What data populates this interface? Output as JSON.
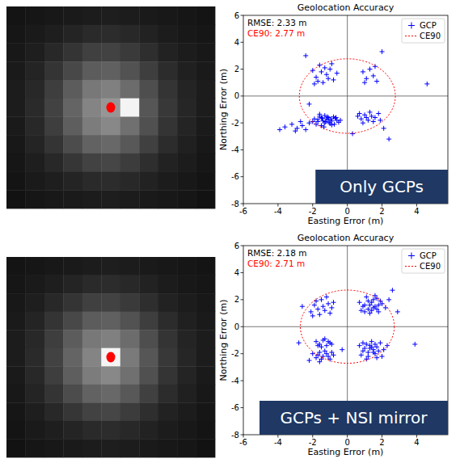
{
  "images": [
    {
      "pixels": [
        [
          20,
          22,
          24,
          26,
          28,
          30,
          28,
          26,
          24,
          22,
          20
        ],
        [
          22,
          26,
          30,
          36,
          42,
          44,
          40,
          34,
          28,
          24,
          22
        ],
        [
          24,
          30,
          40,
          52,
          64,
          66,
          58,
          46,
          34,
          28,
          24
        ],
        [
          26,
          36,
          52,
          72,
          92,
          96,
          82,
          62,
          44,
          32,
          26
        ],
        [
          28,
          40,
          62,
          92,
          120,
          128,
          108,
          78,
          52,
          36,
          28
        ],
        [
          28,
          42,
          66,
          100,
          132,
          150,
          122,
          86,
          56,
          38,
          28
        ],
        [
          26,
          40,
          62,
          94,
          124,
          136,
          112,
          80,
          52,
          36,
          26
        ],
        [
          24,
          36,
          52,
          76,
          98,
          104,
          88,
          64,
          44,
          32,
          24
        ],
        [
          22,
          30,
          40,
          54,
          66,
          70,
          60,
          46,
          34,
          28,
          22
        ],
        [
          20,
          26,
          30,
          36,
          42,
          44,
          40,
          34,
          28,
          24,
          20
        ],
        [
          18,
          22,
          24,
          26,
          28,
          30,
          28,
          26,
          24,
          22,
          18
        ]
      ],
      "highlight": [
        5,
        6
      ],
      "marker": [
        5,
        5
      ]
    },
    {
      "pixels": [
        [
          20,
          22,
          24,
          26,
          28,
          30,
          28,
          26,
          24,
          22,
          20
        ],
        [
          22,
          26,
          30,
          36,
          42,
          44,
          40,
          34,
          28,
          24,
          22
        ],
        [
          24,
          30,
          40,
          52,
          64,
          66,
          58,
          46,
          34,
          28,
          24
        ],
        [
          26,
          36,
          52,
          72,
          92,
          96,
          82,
          62,
          44,
          32,
          26
        ],
        [
          28,
          40,
          62,
          92,
          120,
          128,
          108,
          78,
          52,
          36,
          28
        ],
        [
          28,
          42,
          66,
          100,
          132,
          150,
          122,
          86,
          56,
          38,
          28
        ],
        [
          26,
          40,
          62,
          94,
          124,
          136,
          112,
          80,
          52,
          36,
          26
        ],
        [
          24,
          36,
          52,
          76,
          98,
          104,
          88,
          64,
          44,
          32,
          24
        ],
        [
          22,
          30,
          40,
          54,
          66,
          70,
          60,
          46,
          34,
          28,
          22
        ],
        [
          20,
          26,
          30,
          36,
          42,
          44,
          40,
          34,
          28,
          24,
          20
        ],
        [
          18,
          22,
          24,
          26,
          28,
          30,
          28,
          26,
          24,
          22,
          18
        ]
      ],
      "highlight": [
        5,
        5
      ],
      "marker": [
        5,
        5
      ]
    }
  ],
  "chart_data": [
    {
      "type": "scatter",
      "title": "Geolocation Accuracy",
      "x_label": "Easting Error (m)",
      "y_label": "Northing Error (m)",
      "xlim": [
        -6,
        5.8
      ],
      "ylim": [
        -8,
        6
      ],
      "xticks": [
        -6,
        -4,
        -2,
        0,
        2,
        4
      ],
      "yticks": [
        -8,
        -6,
        -4,
        -2,
        0,
        2,
        4,
        6
      ],
      "grid": false,
      "legend": "upper right",
      "annotations": [
        "RMSE: 2.33 m"
      ],
      "ce90": {
        "name": "CE90",
        "label": "CE90: 2.77 m",
        "radius": 2.77,
        "color": "#ff0000",
        "line_style": "dotted"
      },
      "caption": "Only GCPs",
      "series": [
        {
          "name": "GCP",
          "color": "#0000ff",
          "marker": "plus",
          "x": [
            -1.9,
            -1.7,
            -1.5,
            -1.3,
            -1.1,
            -0.9,
            -0.7,
            -0.5,
            -1.8,
            -1.6,
            -1.4,
            -1.2,
            -1.0,
            -0.8,
            -0.6,
            -2.0,
            -1.5,
            -1.3,
            -1.1,
            -0.9,
            -1.7,
            -1.25,
            -0.95,
            -0.65,
            -1.45,
            -1.05,
            -2.2,
            -0.4,
            -1.6,
            -0.75,
            -1.35,
            -1.15,
            0.6,
            0.8,
            1.0,
            1.2,
            1.4,
            1.6,
            1.8,
            0.9,
            1.3,
            1.5,
            1.1,
            0.7,
            1.9,
            2.1,
            -2.0,
            -1.8,
            -1.6,
            -1.4,
            -1.2,
            -1.0,
            -0.8,
            -1.9,
            -1.5,
            -0.9,
            -1.7,
            -1.1,
            -0.6,
            -1.3,
            0.9,
            1.1,
            1.3,
            1.5,
            1.7,
            1.0,
            1.6,
            -3.6,
            -3.2,
            -2.9,
            -2.6,
            -2.4,
            -3.0,
            -2.7,
            -3.9,
            4.6,
            2.0,
            2.4,
            0.3,
            -2.4,
            -2.2
          ],
          "values": [
            -1.7,
            -1.9,
            -1.6,
            -2.0,
            -1.75,
            -1.85,
            -1.65,
            -1.95,
            -2.1,
            -1.5,
            -1.85,
            -1.7,
            -2.05,
            -1.55,
            -1.8,
            -1.9,
            -2.2,
            -1.45,
            -1.6,
            -2.15,
            -1.75,
            -1.9,
            -1.7,
            -1.6,
            -1.65,
            -1.95,
            -2.0,
            -1.8,
            -1.35,
            -2.1,
            -2.3,
            -1.55,
            -1.5,
            -1.7,
            -1.4,
            -1.8,
            -1.5,
            -1.6,
            -1.3,
            -2.0,
            -1.2,
            -1.9,
            -1.6,
            -1.3,
            -1.8,
            -2.4,
            1.9,
            1.4,
            2.3,
            1.0,
            1.6,
            2.0,
            1.2,
            0.9,
            1.8,
            2.4,
            1.1,
            1.3,
            1.7,
            2.1,
            1.8,
            1.3,
            2.0,
            1.5,
            1.1,
            1.0,
            2.2,
            -2.3,
            -2.1,
            -2.4,
            -2.2,
            -2.5,
            -2.6,
            -1.9,
            -2.5,
            0.9,
            3.3,
            -3.2,
            -2.8,
            3.0,
            -0.6
          ]
        }
      ]
    },
    {
      "type": "scatter",
      "title": "Geolocation Accuracy",
      "x_label": "Easting Error (m)",
      "y_label": "Northing Error (m)",
      "xlim": [
        -6,
        5.8
      ],
      "ylim": [
        -8,
        6
      ],
      "xticks": [
        -6,
        -4,
        -2,
        0,
        2,
        4
      ],
      "yticks": [
        -8,
        -6,
        -4,
        -2,
        0,
        2,
        4,
        6
      ],
      "grid": false,
      "legend": "upper right",
      "annotations": [
        "RMSE: 2.18 m"
      ],
      "ce90": {
        "name": "CE90",
        "label": "CE90: 2.71 m",
        "radius": 2.71,
        "color": "#ff0000",
        "line_style": "dotted"
      },
      "caption": "GCPs + NSI mirror",
      "series": [
        {
          "name": "GCP",
          "color": "#0000ff",
          "marker": "plus",
          "x": [
            0.8,
            1.0,
            1.2,
            1.4,
            1.6,
            1.8,
            2.0,
            1.1,
            1.3,
            1.5,
            1.7,
            1.9,
            0.9,
            1.2,
            1.4,
            1.6,
            2.2,
            1.0,
            1.8,
            1.3,
            1.5,
            1.7,
            2.4,
            0.7,
            0.7,
            0.9,
            1.1,
            1.3,
            1.5,
            1.7,
            1.9,
            2.1,
            0.8,
            1.2,
            1.4,
            1.6,
            1.8,
            1.0,
            1.2,
            1.4,
            1.6,
            2.0,
            2.3,
            1.1,
            1.5,
            0.9,
            1.7,
            1.3,
            -2.1,
            -1.9,
            -1.7,
            -1.5,
            -1.3,
            -1.1,
            -0.9,
            -1.6,
            -1.2,
            -1.8,
            -1.4,
            -1.0,
            -2.0,
            -0.8,
            -1.8,
            -1.6,
            -1.4,
            -1.2,
            -1.0,
            -1.5,
            -1.3,
            -1.1,
            -1.7,
            -0.9,
            -2.0,
            -1.8,
            -1.6,
            -1.4,
            -1.2,
            -1.0,
            -0.8,
            -1.7,
            -1.5,
            -1.3,
            -1.1,
            -0.9,
            -2.2,
            -1.6,
            -2.8,
            2.9,
            3.9,
            -0.3,
            2.6,
            -2.6
          ],
          "values": [
            1.2,
            1.6,
            1.3,
            1.8,
            1.5,
            1.1,
            1.7,
            2.2,
            1.0,
            2.0,
            1.3,
            1.9,
            1.5,
            1.9,
            1.2,
            2.3,
            1.4,
            1.1,
            1.6,
            1.6,
            1.4,
            2.1,
            2.0,
            1.8,
            -1.4,
            -1.8,
            -1.3,
            -1.6,
            -1.9,
            -1.5,
            -1.2,
            -1.7,
            -2.1,
            -2.2,
            -1.1,
            -2.0,
            -1.8,
            -1.6,
            -1.9,
            -1.5,
            -1.3,
            -2.2,
            -1.4,
            -2.4,
            -1.7,
            -1.2,
            -2.3,
            -1.4,
            1.1,
            1.6,
            1.3,
            2.0,
            1.2,
            1.7,
            1.4,
            0.9,
            2.2,
            1.9,
            1.5,
            1.0,
            0.8,
            1.8,
            -1.1,
            -1.3,
            -1.0,
            -1.4,
            -1.2,
            -1.5,
            -0.9,
            -1.1,
            -1.4,
            -1.3,
            -2.0,
            -2.3,
            -1.9,
            -2.2,
            -2.0,
            -2.4,
            -2.1,
            -2.1,
            -2.4,
            -1.8,
            -2.2,
            -1.9,
            -2.5,
            -2.6,
            -1.2,
            1.1,
            -1.3,
            -1.7,
            2.7,
            1.5
          ]
        }
      ]
    }
  ]
}
